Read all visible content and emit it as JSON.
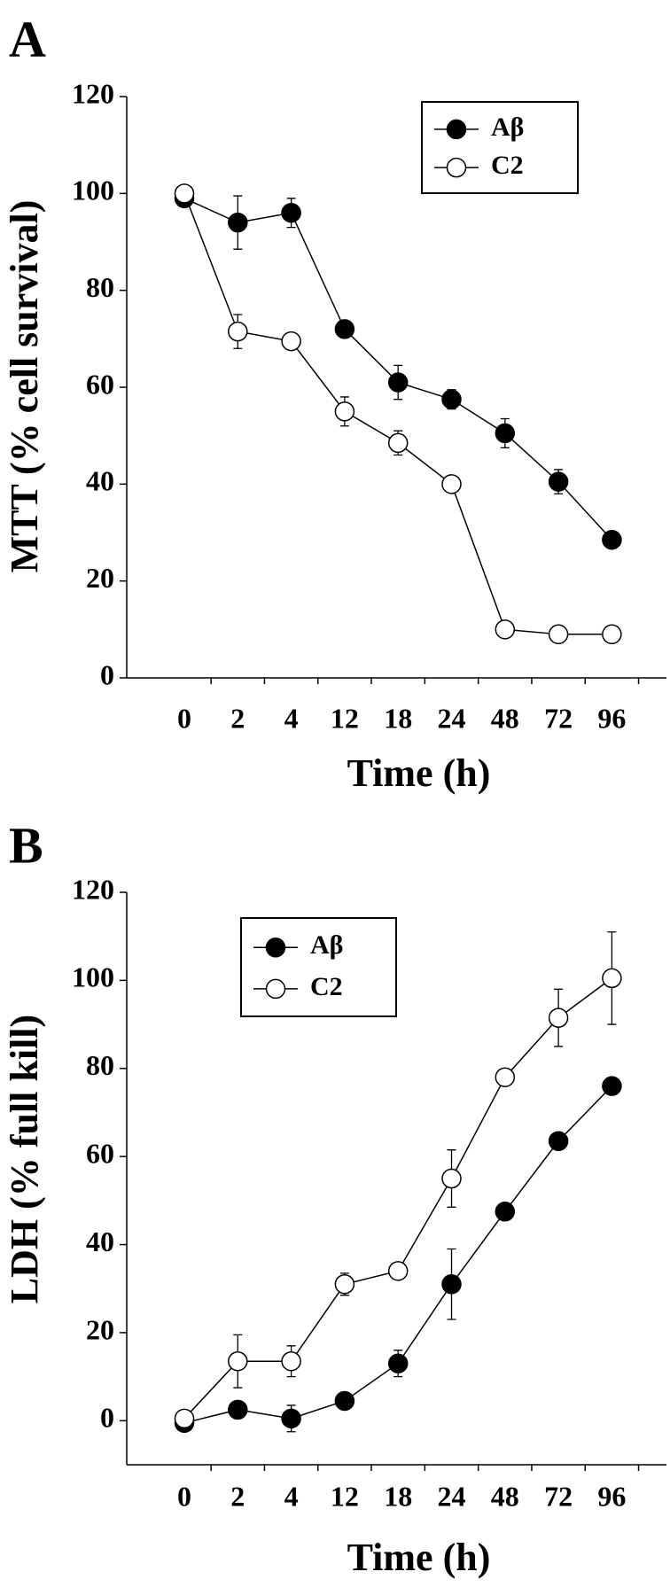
{
  "chart_data": [
    {
      "type": "line",
      "panel": "A",
      "y_label": "MTT (% cell survival)",
      "x_label": "Time (h)",
      "categories": [
        "0",
        "2",
        "4",
        "12",
        "18",
        "24",
        "48",
        "72",
        "96"
      ],
      "ylim": [
        0,
        120
      ],
      "yticks": [
        0,
        20,
        40,
        60,
        80,
        100,
        120
      ],
      "series": [
        {
          "name": "Aβ",
          "color": "#000000",
          "values": [
            99,
            94,
            96,
            72,
            61,
            57.5,
            50.5,
            40.5,
            28.5
          ],
          "errors": [
            0,
            5.5,
            3,
            0,
            3.5,
            2,
            3,
            2.5,
            1
          ]
        },
        {
          "name": "C2",
          "color": "#ffffff",
          "values": [
            100,
            71.5,
            69.5,
            55,
            48.5,
            40,
            10,
            9,
            9
          ],
          "errors": [
            0,
            3.5,
            0,
            3,
            2.5,
            0,
            0,
            0,
            0
          ]
        }
      ]
    },
    {
      "type": "line",
      "panel": "B",
      "y_label": "LDH (% full kill)",
      "x_label": "Time (h)",
      "categories": [
        "0",
        "2",
        "4",
        "12",
        "18",
        "24",
        "48",
        "72",
        "96"
      ],
      "ylim": [
        -10,
        120
      ],
      "yticks": [
        0,
        20,
        40,
        60,
        80,
        100,
        120
      ],
      "series": [
        {
          "name": "Aβ",
          "color": "#000000",
          "values": [
            -0.5,
            2.5,
            0.5,
            4.5,
            13,
            31,
            47.5,
            63.5,
            76
          ],
          "errors": [
            0,
            0,
            3,
            0,
            3,
            8,
            0,
            0,
            0
          ]
        },
        {
          "name": "C2",
          "color": "#ffffff",
          "values": [
            0.5,
            13.5,
            13.5,
            31,
            34,
            55,
            78,
            91.5,
            100.5
          ],
          "errors": [
            0,
            6,
            3.5,
            2.5,
            0,
            6.5,
            0,
            6.5,
            10.5
          ]
        }
      ]
    }
  ]
}
